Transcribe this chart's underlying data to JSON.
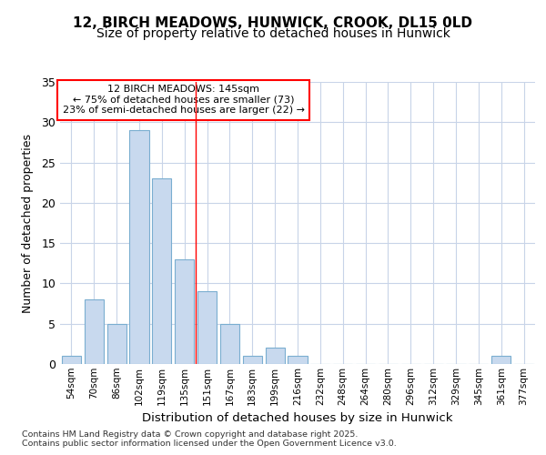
{
  "title_line1": "12, BIRCH MEADOWS, HUNWICK, CROOK, DL15 0LD",
  "title_line2": "Size of property relative to detached houses in Hunwick",
  "xlabel": "Distribution of detached houses by size in Hunwick",
  "ylabel": "Number of detached properties",
  "categories": [
    "54sqm",
    "70sqm",
    "86sqm",
    "102sqm",
    "119sqm",
    "135sqm",
    "151sqm",
    "167sqm",
    "183sqm",
    "199sqm",
    "216sqm",
    "232sqm",
    "248sqm",
    "264sqm",
    "280sqm",
    "296sqm",
    "312sqm",
    "329sqm",
    "345sqm",
    "361sqm",
    "377sqm"
  ],
  "values": [
    1,
    8,
    5,
    29,
    23,
    13,
    9,
    5,
    1,
    2,
    1,
    0,
    0,
    0,
    0,
    0,
    0,
    0,
    0,
    1,
    0
  ],
  "bar_color": "#c8d9ee",
  "bar_edge_color": "#7aaed0",
  "grid_color": "#c8d4e8",
  "background_color": "#ffffff",
  "vline_x": 5.5,
  "vline_color": "red",
  "annotation_text": "12 BIRCH MEADOWS: 145sqm\n← 75% of detached houses are smaller (73)\n23% of semi-detached houses are larger (22) →",
  "annotation_box_color": "white",
  "annotation_box_edge": "red",
  "ylim": [
    0,
    35
  ],
  "yticks": [
    0,
    5,
    10,
    15,
    20,
    25,
    30,
    35
  ],
  "footer": "Contains HM Land Registry data © Crown copyright and database right 2025.\nContains public sector information licensed under the Open Government Licence v3.0."
}
